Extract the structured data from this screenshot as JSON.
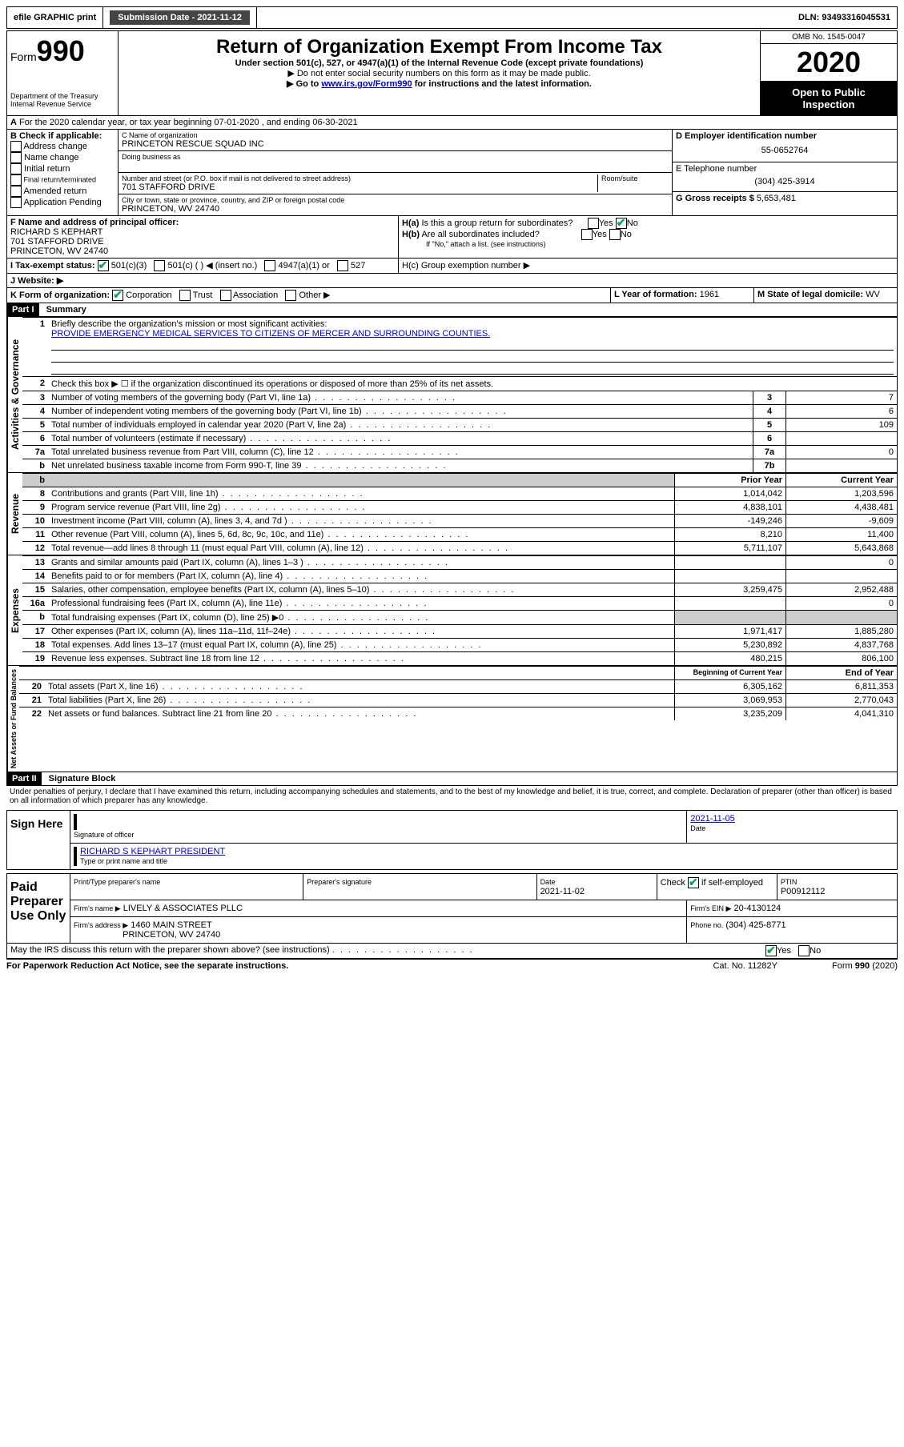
{
  "topbar": {
    "efile": "efile GRAPHIC print",
    "submission_label": "Submission Date - 2021-11-12",
    "dln_label": "DLN: 93493316045531"
  },
  "header": {
    "form_word": "Form",
    "form_num": "990",
    "dept1": "Department of the Treasury",
    "dept2": "Internal Revenue Service",
    "title": "Return of Organization Exempt From Income Tax",
    "sub": "Under section 501(c), 527, or 4947(a)(1) of the Internal Revenue Code (except private foundations)",
    "inst1": "▶ Do not enter social security numbers on this form as it may be made public.",
    "inst2a": "▶ Go to ",
    "inst2_link": "www.irs.gov/Form990",
    "inst2b": " for instructions and the latest information.",
    "omb": "OMB No. 1545-0047",
    "year": "2020",
    "open1": "Open to Public",
    "open2": "Inspection"
  },
  "line_a": "For the 2020 calendar year, or tax year beginning 07-01-2020    , and ending 06-30-2021",
  "box_b": {
    "label": "B Check if applicable:",
    "opts": [
      "Address change",
      "Name change",
      "Initial return",
      "Final return/terminated",
      "Amended return",
      "Application Pending"
    ]
  },
  "box_c": {
    "label_name": "C Name of organization",
    "name": "PRINCETON RESCUE SQUAD INC",
    "dba_label": "Doing business as",
    "addr_label": "Number and street (or P.O. box if mail is not delivered to street address)",
    "room_label": "Room/suite",
    "addr": "701 STAFFORD DRIVE",
    "city_label": "City or town, state or province, country, and ZIP or foreign postal code",
    "city": "PRINCETON, WV  24740"
  },
  "box_d": {
    "label": "D Employer identification number",
    "val": "55-0652764"
  },
  "box_e": {
    "label": "E Telephone number",
    "val": "(304) 425-3914"
  },
  "box_g": {
    "label": "G Gross receipts $",
    "val": "5,653,481"
  },
  "box_f": {
    "label": "F Name and address of principal officer:",
    "l1": "RICHARD S KEPHART",
    "l2": "701 STAFFORD DRIVE",
    "l3": "PRINCETON, WV  24740"
  },
  "box_h": {
    "ha": "H(a)  Is this a group return for subordinates?",
    "hb": "H(b)  Are all subordinates included?",
    "hb_note": "If \"No,\" attach a list. (see instructions)",
    "hc": "H(c)  Group exemption number ▶",
    "yes": "Yes",
    "no": "No"
  },
  "box_i": {
    "label": "I    Tax-exempt status:",
    "o1": "501(c)(3)",
    "o2": "501(c) (   ) ◀ (insert no.)",
    "o3": "4947(a)(1) or",
    "o4": "527"
  },
  "box_j": {
    "label": "J    Website: ▶"
  },
  "box_k": {
    "label": "K Form of organization:",
    "o1": "Corporation",
    "o2": "Trust",
    "o3": "Association",
    "o4": "Other ▶"
  },
  "box_l": {
    "label": "L Year of formation:",
    "val": "1961"
  },
  "box_m": {
    "label": "M State of legal domicile:",
    "val": "WV"
  },
  "part1": {
    "header": "Part I",
    "title": "Summary",
    "sec_gov": "Activities & Governance",
    "sec_rev": "Revenue",
    "sec_exp": "Expenses",
    "sec_net": "Net Assets or Fund Balances",
    "l1": "Briefly describe the organization's mission or most significant activities:",
    "l1_text": "PROVIDE EMERGENCY MEDICAL SERVICES TO CITIZENS OF MERCER AND SURROUNDING COUNTIES.",
    "l2": "Check this box ▶ ☐  if the organization discontinued its operations or disposed of more than 25% of its net assets.",
    "rows_gov": [
      {
        "n": "3",
        "t": "Number of voting members of the governing body (Part VI, line 1a)",
        "box": "3",
        "v": "7"
      },
      {
        "n": "4",
        "t": "Number of independent voting members of the governing body (Part VI, line 1b)",
        "box": "4",
        "v": "6"
      },
      {
        "n": "5",
        "t": "Total number of individuals employed in calendar year 2020 (Part V, line 2a)",
        "box": "5",
        "v": "109"
      },
      {
        "n": "6",
        "t": "Total number of volunteers (estimate if necessary)",
        "box": "6",
        "v": ""
      },
      {
        "n": "7a",
        "t": "Total unrelated business revenue from Part VIII, column (C), line 12",
        "box": "7a",
        "v": "0"
      },
      {
        "n": "b",
        "t": "Net unrelated business taxable income from Form 990-T, line 39",
        "box": "7b",
        "v": ""
      }
    ],
    "hdr_prior": "Prior Year",
    "hdr_curr": "Current Year",
    "rows_rev": [
      {
        "n": "8",
        "t": "Contributions and grants (Part VIII, line 1h)",
        "p": "1,014,042",
        "c": "1,203,596"
      },
      {
        "n": "9",
        "t": "Program service revenue (Part VIII, line 2g)",
        "p": "4,838,101",
        "c": "4,438,481"
      },
      {
        "n": "10",
        "t": "Investment income (Part VIII, column (A), lines 3, 4, and 7d )",
        "p": "-149,246",
        "c": "-9,609"
      },
      {
        "n": "11",
        "t": "Other revenue (Part VIII, column (A), lines 5, 6d, 8c, 9c, 10c, and 11e)",
        "p": "8,210",
        "c": "11,400"
      },
      {
        "n": "12",
        "t": "Total revenue—add lines 8 through 11 (must equal Part VIII, column (A), line 12)",
        "p": "5,711,107",
        "c": "5,643,868"
      }
    ],
    "rows_exp": [
      {
        "n": "13",
        "t": "Grants and similar amounts paid (Part IX, column (A), lines 1–3 )",
        "p": "",
        "c": "0"
      },
      {
        "n": "14",
        "t": "Benefits paid to or for members (Part IX, column (A), line 4)",
        "p": "",
        "c": ""
      },
      {
        "n": "15",
        "t": "Salaries, other compensation, employee benefits (Part IX, column (A), lines 5–10)",
        "p": "3,259,475",
        "c": "2,952,488"
      },
      {
        "n": "16a",
        "t": "Professional fundraising fees (Part IX, column (A), line 11e)",
        "p": "",
        "c": "0"
      },
      {
        "n": "b",
        "t": "Total fundraising expenses (Part IX, column (D), line 25) ▶0",
        "p": "SHADE",
        "c": "SHADE"
      },
      {
        "n": "17",
        "t": "Other expenses (Part IX, column (A), lines 11a–11d, 11f–24e)",
        "p": "1,971,417",
        "c": "1,885,280"
      },
      {
        "n": "18",
        "t": "Total expenses. Add lines 13–17 (must equal Part IX, column (A), line 25)",
        "p": "5,230,892",
        "c": "4,837,768"
      },
      {
        "n": "19",
        "t": "Revenue less expenses. Subtract line 18 from line 12",
        "p": "480,215",
        "c": "806,100"
      }
    ],
    "hdr_beg": "Beginning of Current Year",
    "hdr_end": "End of Year",
    "rows_net": [
      {
        "n": "20",
        "t": "Total assets (Part X, line 16)",
        "p": "6,305,162",
        "c": "6,811,353"
      },
      {
        "n": "21",
        "t": "Total liabilities (Part X, line 26)",
        "p": "3,069,953",
        "c": "2,770,043"
      },
      {
        "n": "22",
        "t": "Net assets or fund balances. Subtract line 21 from line 20",
        "p": "3,235,209",
        "c": "4,041,310"
      }
    ]
  },
  "part2": {
    "header": "Part II",
    "title": "Signature Block",
    "perjury": "Under penalties of perjury, I declare that I have examined this return, including accompanying schedules and statements, and to the best of my knowledge and belief, it is true, correct, and complete. Declaration of preparer (other than officer) is based on all information of which preparer has any knowledge.",
    "sign_here": "Sign Here",
    "sig_officer": "Signature of officer",
    "sig_date": "2021-11-05",
    "date_label": "Date",
    "officer_name": "RICHARD S KEPHART PRESIDENT",
    "type_name": "Type or print name and title",
    "paid": "Paid Preparer Use Only",
    "pp_name_label": "Print/Type preparer's name",
    "pp_sig_label": "Preparer's signature",
    "pp_date": "2021-11-02",
    "pp_check": "Check ☑ if self-employed",
    "ptin_label": "PTIN",
    "ptin": "P00912112",
    "firm_name_label": "Firm's name    ▶",
    "firm_name": "LIVELY & ASSOCIATES PLLC",
    "firm_ein_label": "Firm's EIN ▶",
    "firm_ein": "20-4130124",
    "firm_addr_label": "Firm's address ▶",
    "firm_addr1": "1460 MAIN STREET",
    "firm_addr2": "PRINCETON, WV  24740",
    "firm_phone_label": "Phone no.",
    "firm_phone": "(304) 425-8771",
    "discuss": "May the IRS discuss this return with the preparer shown above? (see instructions)",
    "footer_left": "For Paperwork Reduction Act Notice, see the separate instructions.",
    "footer_mid": "Cat. No. 11282Y",
    "footer_right": "Form 990 (2020)"
  }
}
